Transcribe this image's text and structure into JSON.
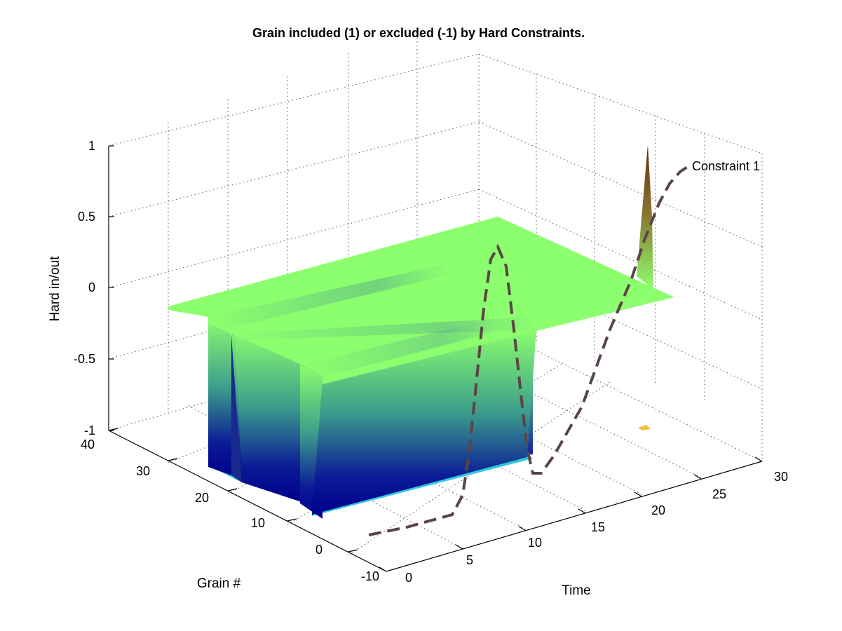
{
  "chart_data": {
    "type": "surface3d",
    "title": "Grain included (1) or excluded (-1) by Hard Constraints.",
    "xlabel": "Time",
    "ylabel": "Grain #",
    "zlabel": "Hard in/out",
    "xlim": [
      0,
      30
    ],
    "ylim": [
      -10,
      40
    ],
    "zlim": [
      -1,
      1
    ],
    "xticks": [
      "0",
      "5",
      "10",
      "15",
      "20",
      "25",
      "30"
    ],
    "yticks": [
      "-10",
      "0",
      "10",
      "20",
      "30",
      "40"
    ],
    "zticks": [
      "-1",
      "-0.5",
      "0",
      "0.5",
      "1"
    ],
    "grid": true,
    "colors": {
      "top": "#8cff6e",
      "mid": "#3c8c8c",
      "bottom": "#00008c",
      "curve": "#5a4545",
      "peak": "#7a3a10"
    },
    "excluded_blocks": [
      {
        "grain_from": 28,
        "grain_to": 34,
        "time_from": 0.5,
        "time_to": 6,
        "value": -1
      },
      {
        "grain_from": 20,
        "grain_to": 27,
        "time_from": 0.5,
        "time_to": 12,
        "value": -1
      },
      {
        "grain_from": 5,
        "grain_to": 18,
        "time_from": 0.5,
        "time_to": 14,
        "value": -1
      }
    ],
    "peak": {
      "time": 26,
      "grain": 32,
      "value": 1
    },
    "annotation": "Constraint 1",
    "constraint_curve": {
      "name": "Constraint 1",
      "style": "dashed",
      "x": [
        2,
        4,
        6,
        8,
        10,
        11.5,
        13,
        14,
        15,
        16,
        17,
        18,
        19,
        20,
        22,
        24,
        26,
        28,
        29
      ],
      "y": [
        -8,
        -8,
        -8,
        -8,
        -6,
        0,
        10,
        20,
        28,
        32,
        32,
        32,
        30,
        25,
        18,
        12,
        8,
        4,
        2
      ],
      "z": [
        -1,
        -1,
        -1,
        -1,
        -1,
        -0.7,
        0.2,
        0.9,
        0.55,
        -0.5,
        -0.95,
        -1,
        -0.9,
        -0.6,
        0,
        0.5,
        0.85,
        0.95,
        0.95
      ]
    }
  }
}
